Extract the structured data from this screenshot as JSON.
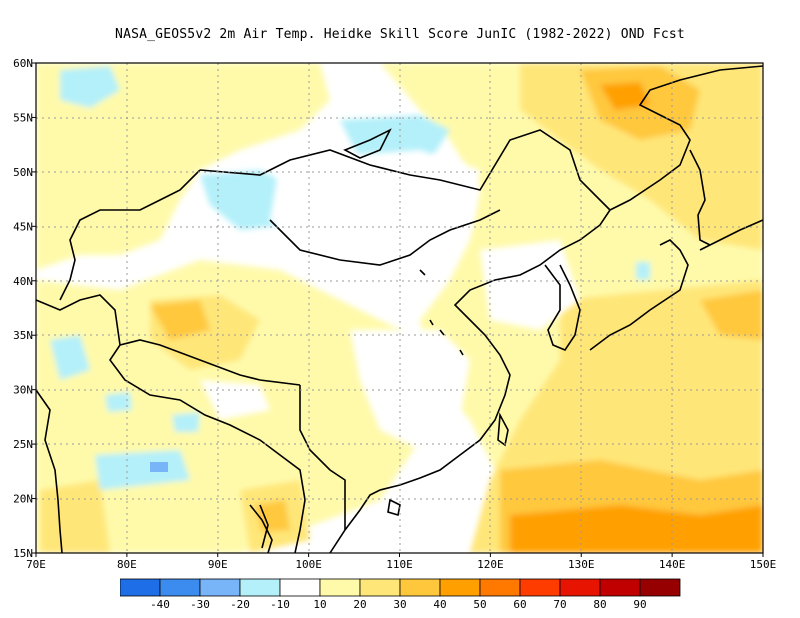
{
  "title": "NASA_GEOS5v2  2m Air Temp. Heidke Skill Score JunIC (1982-2022) OND Fcst",
  "map": {
    "lon_range": [
      70,
      150
    ],
    "lat_range": [
      15,
      60
    ],
    "lon_ticks": [
      "70E",
      "80E",
      "90E",
      "100E",
      "110E",
      "120E",
      "130E",
      "140E",
      "150E"
    ],
    "lat_ticks": [
      "15N",
      "20N",
      "25N",
      "30N",
      "35N",
      "40N",
      "45N",
      "50N",
      "55N",
      "60N"
    ]
  },
  "colorbar": {
    "labels": [
      "-40",
      "-30",
      "-20",
      "-10",
      "10",
      "20",
      "30",
      "40",
      "50",
      "60",
      "70",
      "80",
      "90"
    ],
    "colors": [
      "#1e6ee8",
      "#3c8cf0",
      "#78b4f8",
      "#b4f0fa",
      "#ffffff",
      "#fffaaa",
      "#ffe678",
      "#ffc83c",
      "#ffa000",
      "#ff7800",
      "#ff3c00",
      "#e61400",
      "#c00000",
      "#960000"
    ]
  }
}
